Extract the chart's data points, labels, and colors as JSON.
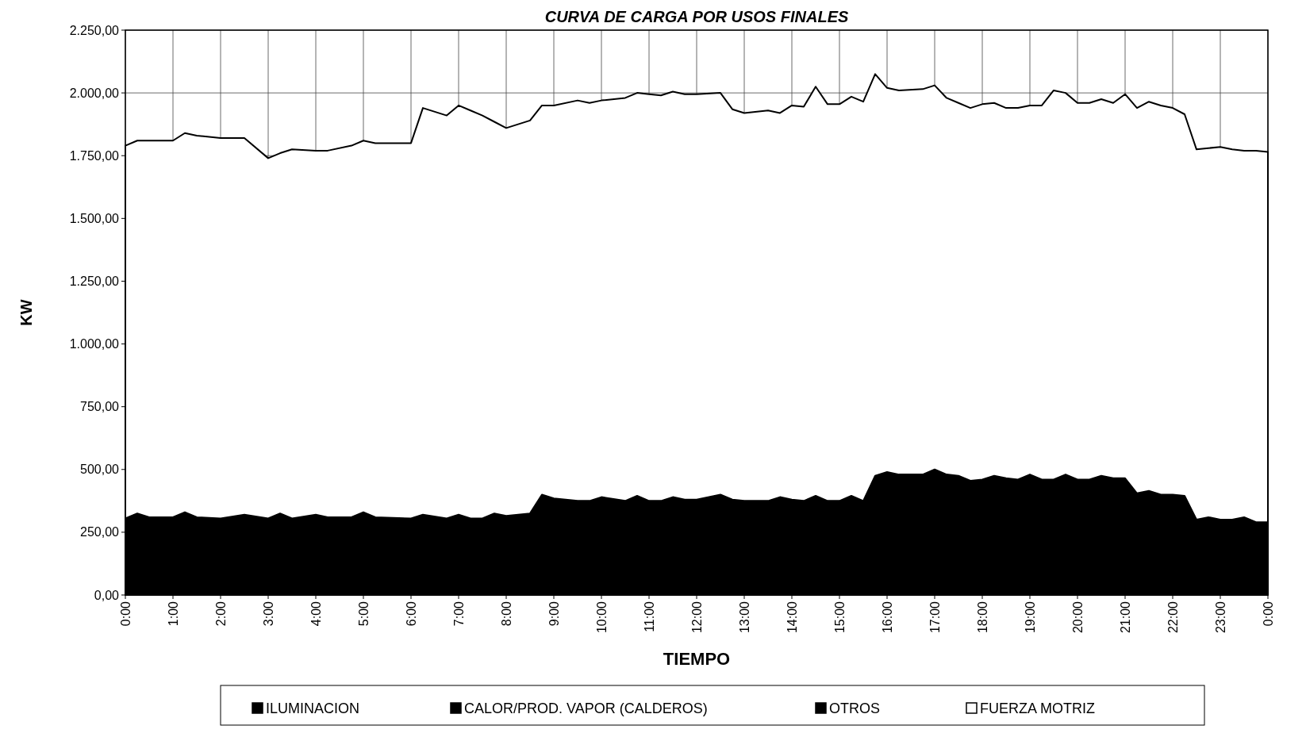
{
  "chart_data": {
    "type": "area",
    "stacked": true,
    "title": "CURVA DE CARGA POR USOS FINALES",
    "xlabel": "TIEMPO",
    "ylabel": "KW",
    "xlim": [
      0,
      24
    ],
    "xticks": [
      {
        "value": 0,
        "label": "0:00"
      },
      {
        "value": 1,
        "label": "1:00"
      },
      {
        "value": 2,
        "label": "2:00"
      },
      {
        "value": 3,
        "label": "3:00"
      },
      {
        "value": 4,
        "label": "4:00"
      },
      {
        "value": 5,
        "label": "5:00"
      },
      {
        "value": 6,
        "label": "6:00"
      },
      {
        "value": 7,
        "label": "7:00"
      },
      {
        "value": 8,
        "label": "8:00"
      },
      {
        "value": 9,
        "label": "9:00"
      },
      {
        "value": 10,
        "label": "10:00"
      },
      {
        "value": 11,
        "label": "11:00"
      },
      {
        "value": 12,
        "label": "12:00"
      },
      {
        "value": 13,
        "label": "13:00"
      },
      {
        "value": 14,
        "label": "14:00"
      },
      {
        "value": 15,
        "label": "15:00"
      },
      {
        "value": 16,
        "label": "16:00"
      },
      {
        "value": 17,
        "label": "17:00"
      },
      {
        "value": 18,
        "label": "18:00"
      },
      {
        "value": 19,
        "label": "19:00"
      },
      {
        "value": 20,
        "label": "20:00"
      },
      {
        "value": 21,
        "label": "21:00"
      },
      {
        "value": 22,
        "label": "22:00"
      },
      {
        "value": 23,
        "label": "23:00"
      },
      {
        "value": 24,
        "label": "0:00"
      }
    ],
    "ylim": [
      0,
      2250
    ],
    "yticks": [
      {
        "value": 0,
        "label": "0,00"
      },
      {
        "value": 250,
        "label": "250,00"
      },
      {
        "value": 500,
        "label": "500,00"
      },
      {
        "value": 750,
        "label": "750,00"
      },
      {
        "value": 1000,
        "label": "1.000,00"
      },
      {
        "value": 1250,
        "label": "1.250,00"
      },
      {
        "value": 1500,
        "label": "1.500,00"
      },
      {
        "value": 1750,
        "label": "1.750,00"
      },
      {
        "value": 2000,
        "label": "2.000,00"
      },
      {
        "value": 2250,
        "label": "2.250,00"
      }
    ],
    "grid": true,
    "legend": "bottom",
    "x": [
      0,
      0.25,
      0.5,
      1,
      1.25,
      1.5,
      2,
      2.5,
      3,
      3.25,
      3.5,
      4,
      4.25,
      4.75,
      5,
      5.25,
      6,
      6.25,
      6.75,
      7,
      7.25,
      7.5,
      7.75,
      8,
      8.5,
      8.75,
      9,
      9.5,
      9.75,
      10,
      10.5,
      10.75,
      11,
      11.25,
      11.5,
      11.75,
      12,
      12.5,
      12.75,
      13,
      13.5,
      13.75,
      14,
      14.25,
      14.5,
      14.75,
      15,
      15.25,
      15.5,
      15.75,
      16,
      16.25,
      16.75,
      17,
      17.25,
      17.5,
      17.75,
      18,
      18.25,
      18.5,
      18.75,
      19,
      19.25,
      19.5,
      19.75,
      20,
      20.25,
      20.5,
      20.75,
      21,
      21.25,
      21.5,
      21.75,
      22,
      22.25,
      22.5,
      22.75,
      23,
      23.25,
      23.5,
      23.75,
      24
    ],
    "series": [
      {
        "name": "ILUMINACION",
        "color": "#000000",
        "values": [
          305,
          325,
          310,
          310,
          330,
          310,
          305,
          320,
          305,
          325,
          305,
          320,
          310,
          310,
          330,
          310,
          305,
          320,
          305,
          320,
          305,
          305,
          325,
          315,
          325,
          400,
          385,
          375,
          375,
          390,
          375,
          395,
          375,
          375,
          390,
          380,
          380,
          400,
          380,
          375,
          375,
          390,
          380,
          375,
          395,
          375,
          375,
          395,
          375,
          475,
          490,
          480,
          480,
          500,
          480,
          475,
          455,
          460,
          475,
          465,
          460,
          480,
          460,
          460,
          480,
          460,
          460,
          475,
          465,
          465,
          405,
          415,
          400,
          400,
          395,
          300,
          310,
          300,
          300,
          310,
          290,
          290
        ]
      },
      {
        "name": "CALOR/PROD. VAPOR (CALDEROS)",
        "color": "#000000",
        "values": [
          null,
          null,
          null,
          null,
          null,
          null,
          null,
          null,
          null,
          null,
          null,
          null,
          null,
          null,
          null,
          null,
          null,
          null,
          null,
          null,
          null,
          null,
          null,
          null,
          null,
          null,
          null,
          null,
          null,
          null,
          null,
          null,
          null,
          null,
          null,
          null,
          null,
          null,
          null,
          null,
          null,
          null,
          null,
          null,
          null,
          null,
          null,
          null,
          null,
          null,
          null,
          null,
          null,
          null,
          null,
          null,
          null,
          null,
          null,
          null,
          null,
          null,
          null,
          null,
          null,
          null,
          null,
          null,
          null,
          null,
          null,
          null,
          null,
          null,
          null,
          null,
          null,
          null,
          null,
          null,
          null,
          null
        ]
      },
      {
        "name": "OTROS",
        "color": "#000000",
        "values": [
          null,
          null,
          null,
          null,
          null,
          null,
          null,
          null,
          null,
          null,
          null,
          null,
          null,
          null,
          null,
          null,
          null,
          null,
          null,
          null,
          null,
          null,
          null,
          null,
          null,
          null,
          null,
          null,
          null,
          null,
          null,
          null,
          null,
          null,
          null,
          null,
          null,
          null,
          null,
          null,
          null,
          null,
          null,
          null,
          null,
          null,
          null,
          null,
          null,
          null,
          null,
          null,
          null,
          null,
          null,
          null,
          null,
          null,
          null,
          null,
          null,
          null,
          null,
          null,
          null,
          null,
          null,
          null,
          null,
          null,
          null,
          null,
          null,
          null,
          null,
          null,
          null,
          null,
          null,
          null,
          null,
          null
        ]
      },
      {
        "name": "FUERZA MOTRIZ",
        "color": "#ffffff",
        "values": [
          1485,
          1485,
          1500,
          1500,
          1510,
          1520,
          1515,
          1500,
          1435,
          1435,
          1470,
          1450,
          1460,
          1480,
          1480,
          1490,
          1495,
          1620,
          1605,
          1630,
          1625,
          1605,
          1560,
          1545,
          1565,
          1550,
          1565,
          1595,
          1585,
          1580,
          1605,
          1605,
          1620,
          1615,
          1615,
          1615,
          1615,
          1600,
          1555,
          1545,
          1555,
          1530,
          1570,
          1570,
          1630,
          1580,
          1580,
          1590,
          1590,
          1600,
          1530,
          1530,
          1535,
          1530,
          1500,
          1485,
          1485,
          1495,
          1485,
          1475,
          1480,
          1470,
          1490,
          1550,
          1520,
          1500,
          1500,
          1500,
          1495,
          1530,
          1535,
          1550,
          1550,
          1540,
          1520,
          1475,
          1470,
          1485,
          1475,
          1460,
          1480,
          1475
        ]
      }
    ]
  }
}
